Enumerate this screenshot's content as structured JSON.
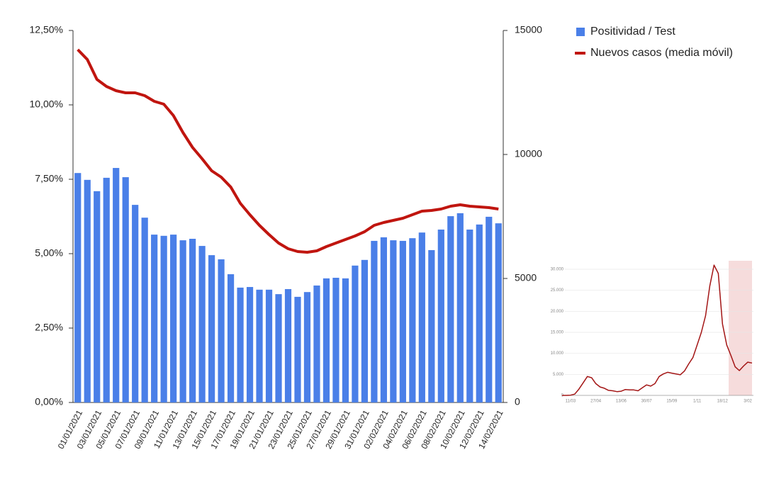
{
  "chart_data": [
    {
      "type": "combo",
      "categories": [
        "01/01/2021",
        null,
        "03/01/2021",
        null,
        "05/01/2021",
        null,
        "07/01/2021",
        null,
        "09/01/2021",
        null,
        "11/01/2021",
        null,
        "13/01/2021",
        null,
        "15/01/2021",
        null,
        "17/01/2021",
        null,
        "19/01/2021",
        null,
        "21/01/2021",
        null,
        "23/01/2021",
        null,
        "25/01/2021",
        null,
        "27/01/2021",
        null,
        "29/01/2021",
        null,
        "31/01/2021",
        null,
        "02/02/2021",
        null,
        "04/02/2021",
        null,
        "06/02/2021",
        null,
        "08/02/2021",
        null,
        "10/02/2021",
        null,
        "12/02/2021",
        null,
        "14/02/2021"
      ],
      "series": [
        {
          "name": "Positividad / Test",
          "color": "#4a7fe8",
          "kind": "bar",
          "values": [
            7.71,
            7.48,
            7.1,
            7.55,
            7.88,
            7.57,
            6.64,
            6.21,
            5.64,
            5.6,
            5.64,
            5.45,
            5.5,
            5.26,
            4.95,
            4.81,
            4.31,
            3.86,
            3.88,
            3.79,
            3.79,
            3.64,
            3.81,
            3.55,
            3.71,
            3.93,
            4.17,
            4.19,
            4.17,
            4.6,
            4.79,
            5.43,
            5.55,
            5.45,
            5.43,
            5.52,
            5.71,
            5.12,
            5.81,
            6.26,
            6.36,
            5.81,
            5.98,
            6.24,
            6.02
          ]
        },
        {
          "name": "Nuevos casos (media móvil)",
          "color": "#c0150f",
          "kind": "line",
          "axis": "y2",
          "values": [
            14229,
            13829,
            13029,
            12743,
            12571,
            12486,
            12486,
            12371,
            12143,
            12029,
            11571,
            10886,
            10286,
            9829,
            9343,
            9086,
            8686,
            8029,
            7571,
            7143,
            6771,
            6429,
            6200,
            6086,
            6057,
            6114,
            6286,
            6429,
            6571,
            6714,
            6886,
            7143,
            7257,
            7343,
            7429,
            7571,
            7714,
            7743,
            7800,
            7914,
            7971,
            7914,
            7886,
            7857,
            7800
          ]
        }
      ],
      "ylim": [
        0,
        12.5
      ],
      "yticks": [
        {
          "value": 0,
          "label": "0,00%"
        },
        {
          "value": 2.5,
          "label": "2,50%"
        },
        {
          "value": 5,
          "label": "5,00%"
        },
        {
          "value": 7.5,
          "label": "7,50%"
        },
        {
          "value": 10,
          "label": "10,00%"
        },
        {
          "value": 12.5,
          "label": "12,50%"
        }
      ],
      "y2lim": [
        0,
        15000
      ],
      "y2ticks": [
        0,
        5000,
        10000,
        15000
      ],
      "grid": false,
      "legend": "top-right"
    },
    {
      "type": "line",
      "categories": [
        null,
        null,
        "11/03",
        null,
        null,
        null,
        null,
        null,
        "27/04",
        null,
        null,
        null,
        null,
        null,
        "13/06",
        null,
        null,
        null,
        null,
        null,
        "30/07",
        null,
        null,
        null,
        null,
        null,
        "15/09",
        null,
        null,
        null,
        null,
        null,
        "1/11",
        null,
        null,
        null,
        null,
        null,
        "18/12",
        null,
        null,
        null,
        null,
        null,
        "3/02",
        null
      ],
      "color": "#a31515",
      "values": [
        0,
        0,
        50,
        300,
        1500,
        3000,
        4500,
        4200,
        2800,
        2000,
        1700,
        1200,
        1100,
        900,
        1000,
        1400,
        1300,
        1300,
        1100,
        1800,
        2500,
        2200,
        2800,
        4500,
        5100,
        5500,
        5300,
        5100,
        4900,
        5800,
        7500,
        9000,
        12000,
        15000,
        19000,
        26000,
        31000,
        29000,
        17000,
        12000,
        9500,
        6800,
        5900,
        7000,
        7900,
        7700
      ],
      "ylim": [
        0,
        30000
      ],
      "yticks": [
        0,
        {
          "value": 5000,
          "label": "5.000"
        },
        {
          "value": 10000,
          "label": "10.000"
        },
        {
          "value": 15000,
          "label": "15.000"
        },
        {
          "value": 20000,
          "label": "20.000"
        },
        {
          "value": 25000,
          "label": "25.000"
        },
        {
          "value": 30000,
          "label": "30.000"
        }
      ],
      "grid": true
    }
  ]
}
